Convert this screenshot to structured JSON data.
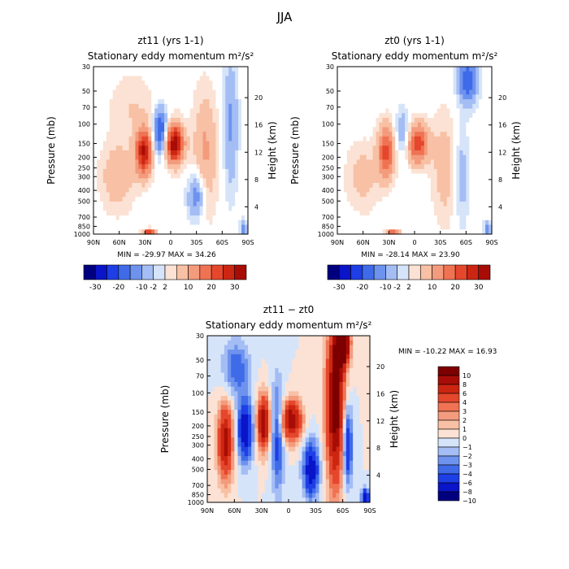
{
  "figure_title": "JJA",
  "colors": {
    "neg": [
      "#00007f",
      "#0a14c8",
      "#1e3ee6",
      "#3f6be8",
      "#6e93ee",
      "#a4bdf4",
      "#d6e4fa"
    ],
    "pos": [
      "#fbe2d4",
      "#f8c0a4",
      "#f49b7d",
      "#ef7352",
      "#e5472c",
      "#cc2612",
      "#a80c06",
      "#7d0000"
    ]
  },
  "chart_data": [
    {
      "type": "heatmap",
      "title": "zt11 (yrs 1-1)",
      "subtitle": "Stationary eddy momentum",
      "units": "m²/s²",
      "xlabel": "",
      "ylabel": "Pressure (mb)",
      "y2label": "Height (km)",
      "x_ticks": [
        "90N",
        "60N",
        "30N",
        "0",
        "30S",
        "60S",
        "90S"
      ],
      "y_ticks": [
        "30",
        "50",
        "70",
        "100",
        "150",
        "200",
        "250",
        "300",
        "400",
        "500",
        "700",
        "850",
        "1000"
      ],
      "y_ticks_values": [
        30,
        50,
        70,
        100,
        150,
        200,
        250,
        300,
        400,
        500,
        700,
        850,
        1000
      ],
      "y2_ticks": [
        "4",
        "8",
        "12",
        "16",
        "20"
      ],
      "y2_ticks_values": [
        4,
        8,
        12,
        16,
        20
      ],
      "min_label": "MIN = -29.97",
      "max_label": "MAX = 34.26",
      "colorbar_labels": [
        "-30",
        "-20",
        "-10",
        "-2",
        "2",
        "10",
        "20",
        "30"
      ],
      "colorbar_levels": [
        -30,
        -25,
        -20,
        -15,
        -10,
        -5,
        -2,
        2,
        5,
        10,
        15,
        20,
        25,
        30
      ],
      "features": [
        {
          "lat": 31,
          "p": 180,
          "value": 30,
          "sx": 7,
          "sy": 0.35
        },
        {
          "lat": -4,
          "p": 150,
          "value": 34,
          "sx": 8,
          "sy": 0.3
        },
        {
          "lat": 12,
          "p": 120,
          "value": -24,
          "sx": 6,
          "sy": 0.35
        },
        {
          "lat": 62,
          "p": 300,
          "value": 9,
          "sx": 14,
          "sy": 0.5
        },
        {
          "lat": -40,
          "p": 180,
          "value": 11,
          "sx": 10,
          "sy": 0.9
        },
        {
          "lat": -30,
          "p": 450,
          "value": -16,
          "sx": 7,
          "sy": 0.35
        },
        {
          "lat": -70,
          "p": 100,
          "value": -11,
          "sx": 6,
          "sy": 1.0
        },
        {
          "lat": 25,
          "p": 990,
          "value": 30,
          "sx": 5,
          "sy": 0.06
        },
        {
          "lat": 45,
          "p": 70,
          "value": 5,
          "sx": 18,
          "sy": 0.5
        },
        {
          "lat": -85,
          "p": 900,
          "value": -14,
          "sx": 3,
          "sy": 0.12
        }
      ]
    },
    {
      "type": "heatmap",
      "title": "zt0 (yrs 1-1)",
      "subtitle": "Stationary eddy momentum",
      "units": "m²/s²",
      "xlabel": "",
      "ylabel": "Pressure (mb)",
      "y2label": "Height (km)",
      "x_ticks": [
        "90N",
        "60N",
        "30N",
        "0",
        "30S",
        "60S",
        "90S"
      ],
      "y_ticks": [
        "30",
        "50",
        "70",
        "100",
        "150",
        "200",
        "250",
        "300",
        "400",
        "500",
        "700",
        "850",
        "1000"
      ],
      "y_ticks_values": [
        30,
        50,
        70,
        100,
        150,
        200,
        250,
        300,
        400,
        500,
        700,
        850,
        1000
      ],
      "y2_ticks": [
        "4",
        "8",
        "12",
        "16",
        "20"
      ],
      "y2_ticks_values": [
        4,
        8,
        12,
        16,
        20
      ],
      "min_label": "MIN = -28.14",
      "max_label": "MAX = 23.90",
      "colorbar_labels": [
        "-30",
        "-20",
        "-10",
        "-2",
        "2",
        "10",
        "20",
        "30"
      ],
      "colorbar_levels": [
        -30,
        -25,
        -20,
        -15,
        -10,
        -5,
        -2,
        2,
        5,
        10,
        15,
        20,
        25,
        30
      ],
      "features": [
        {
          "lat": 33,
          "p": 180,
          "value": 22,
          "sx": 7,
          "sy": 0.4
        },
        {
          "lat": -4,
          "p": 150,
          "value": 24,
          "sx": 9,
          "sy": 0.3
        },
        {
          "lat": 14,
          "p": 120,
          "value": -10,
          "sx": 6,
          "sy": 0.35
        },
        {
          "lat": 60,
          "p": 300,
          "value": 7,
          "sx": 14,
          "sy": 0.5
        },
        {
          "lat": -35,
          "p": 250,
          "value": 8,
          "sx": 10,
          "sy": 0.8
        },
        {
          "lat": -62,
          "p": 40,
          "value": -20,
          "sx": 8,
          "sy": 0.35
        },
        {
          "lat": -55,
          "p": 300,
          "value": -8,
          "sx": 6,
          "sy": 0.7
        },
        {
          "lat": 25,
          "p": 990,
          "value": 24,
          "sx": 5,
          "sy": 0.06
        },
        {
          "lat": -85,
          "p": 900,
          "value": -14,
          "sx": 3,
          "sy": 0.12
        }
      ]
    },
    {
      "type": "heatmap",
      "title": "zt11 − zt0",
      "subtitle": "Stationary eddy momentum",
      "units": "m²/s²",
      "xlabel": "",
      "ylabel": "Pressure (mb)",
      "y2label": "Height (km)",
      "x_ticks": [
        "90N",
        "60N",
        "30N",
        "0",
        "30S",
        "60S",
        "90S"
      ],
      "y_ticks": [
        "30",
        "50",
        "70",
        "100",
        "150",
        "200",
        "250",
        "300",
        "400",
        "500",
        "700",
        "850",
        "1000"
      ],
      "y_ticks_values": [
        30,
        50,
        70,
        100,
        150,
        200,
        250,
        300,
        400,
        500,
        700,
        850,
        1000
      ],
      "y2_ticks": [
        "4",
        "8",
        "12",
        "16",
        "20"
      ],
      "y2_ticks_values": [
        4,
        8,
        12,
        16,
        20
      ],
      "min_label": "MIN = -10.22",
      "max_label": "MAX =  16.93",
      "colorbar_labels": [
        "10",
        "8",
        "6",
        "4",
        "3",
        "2",
        "1",
        "0",
        "−1",
        "−2",
        "−3",
        "−4",
        "−6",
        "−8",
        "−10"
      ],
      "colorbar_levels": [
        -10,
        -8,
        -6,
        -4,
        -3,
        -2,
        -1,
        0,
        1,
        2,
        3,
        4,
        6,
        8,
        10
      ],
      "features": [
        {
          "lat": 70,
          "p": 280,
          "value": 9,
          "sx": 6,
          "sy": 0.55
        },
        {
          "lat": 48,
          "p": 220,
          "value": -8,
          "sx": 6,
          "sy": 0.45
        },
        {
          "lat": 28,
          "p": 190,
          "value": 10,
          "sx": 5,
          "sy": 0.4
        },
        {
          "lat": 12,
          "p": 250,
          "value": -5,
          "sx": 5,
          "sy": 0.8
        },
        {
          "lat": -3,
          "p": 180,
          "value": 10,
          "sx": 8,
          "sy": 0.3
        },
        {
          "lat": -25,
          "p": 500,
          "value": -8,
          "sx": 6,
          "sy": 0.4
        },
        {
          "lat": -52,
          "p": 120,
          "value": 12,
          "sx": 7,
          "sy": 1.2
        },
        {
          "lat": -60,
          "p": 35,
          "value": 16,
          "sx": 5,
          "sy": 0.3
        },
        {
          "lat": -65,
          "p": 300,
          "value": -7,
          "sx": 4,
          "sy": 0.6
        },
        {
          "lat": 58,
          "p": 60,
          "value": -4,
          "sx": 10,
          "sy": 0.4
        },
        {
          "lat": -85,
          "p": 900,
          "value": -8,
          "sx": 3,
          "sy": 0.12
        }
      ]
    }
  ]
}
